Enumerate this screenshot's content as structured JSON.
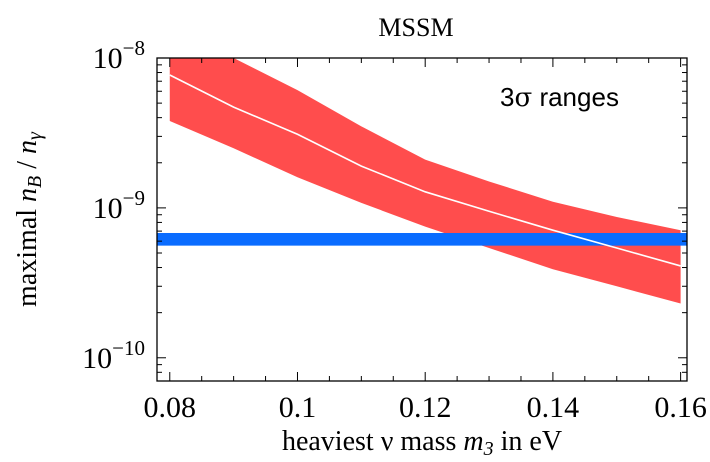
{
  "chart_data": {
    "type": "area",
    "title": "MSSM",
    "xlabel_parts": [
      "heaviest ",
      "ν",
      " mass ",
      "m",
      "3",
      " in eV"
    ],
    "ylabel_parts": [
      "maximal ",
      "n",
      "B",
      " / ",
      "n",
      "γ"
    ],
    "annotation_parts": [
      "3",
      "σ",
      " ranges"
    ],
    "xlim": [
      0.078,
      0.161
    ],
    "ylim": [
      7e-11,
      1e-08
    ],
    "yscale": "log",
    "x_ticks": [
      0.08,
      0.1,
      0.12,
      0.14,
      0.16
    ],
    "x_tick_labels": [
      "0.08",
      "0.1",
      "0.12",
      "0.14",
      "0.16"
    ],
    "y_ticks": [
      1e-10,
      1e-09,
      1e-08
    ],
    "y_tick_labels": [
      {
        "base": "10",
        "exp": "−10"
      },
      {
        "base": "10",
        "exp": "−9"
      },
      {
        "base": "10",
        "exp": "−8"
      }
    ],
    "series": [
      {
        "kind": "band",
        "color": "#ff4d4d",
        "x": [
          0.08,
          0.09,
          0.1,
          0.11,
          0.12,
          0.13,
          0.14,
          0.15,
          0.16
        ],
        "upper": [
          1e-08,
          1e-08,
          6.1e-09,
          3.5e-09,
          2.1e-09,
          1.5e-09,
          1.1e-09,
          8.7e-10,
          7.1e-10
        ],
        "lower": [
          3.8e-09,
          2.5e-09,
          1.6e-09,
          1.08e-09,
          7.5e-10,
          5.4e-10,
          3.9e-10,
          3e-10,
          2.3e-10
        ]
      },
      {
        "kind": "line",
        "color": "#ffffff",
        "x": [
          0.08,
          0.09,
          0.1,
          0.11,
          0.12,
          0.13,
          0.14,
          0.15,
          0.16
        ],
        "y": [
          7.7e-09,
          4.7e-09,
          3.1e-09,
          1.9e-09,
          1.28e-09,
          9.5e-10,
          7.1e-10,
          5.4e-10,
          4.1e-10
        ]
      },
      {
        "kind": "hband",
        "color": "#0a6cff",
        "lower": 5.6e-10,
        "upper": 6.8e-10
      }
    ]
  }
}
